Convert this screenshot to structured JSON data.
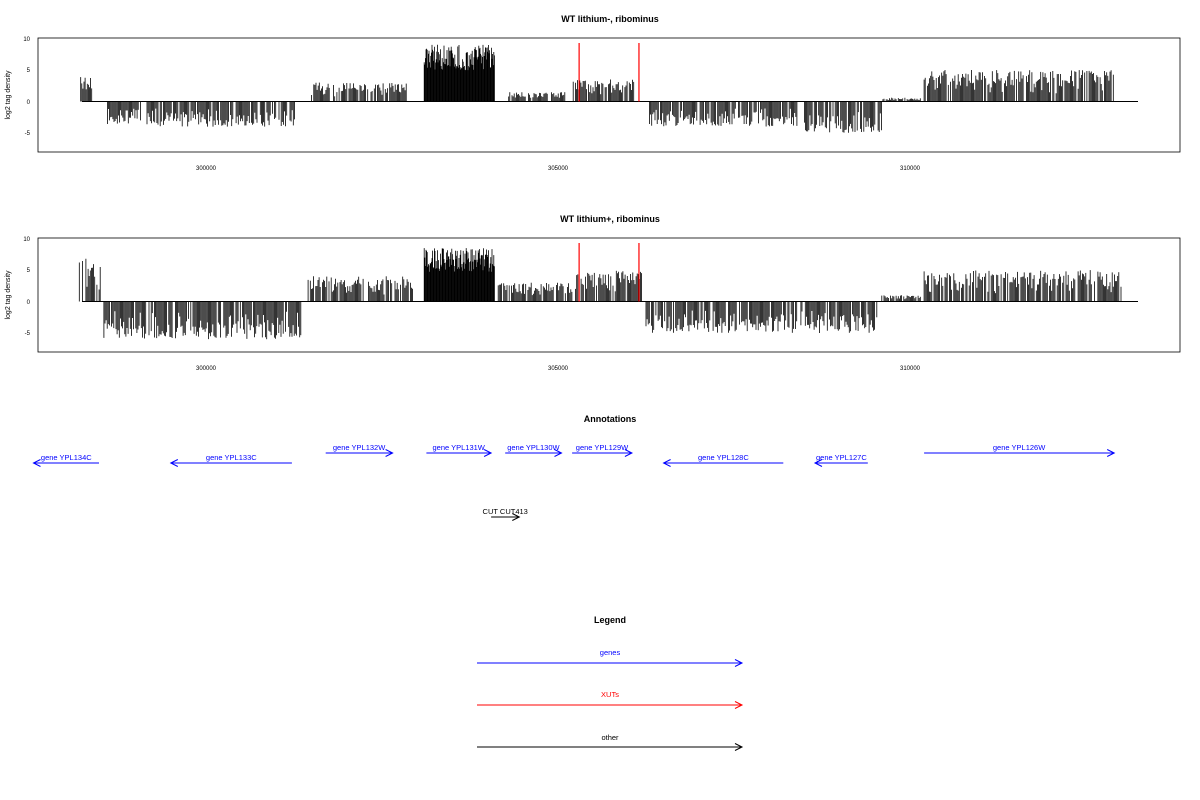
{
  "panels": [
    {
      "title": "WT lithium-, ribominus",
      "ylabel": "log2 tag density",
      "xticks": [
        "300000",
        "305000",
        "310000"
      ],
      "yticks": [
        "10",
        "5",
        "0",
        "-5"
      ]
    },
    {
      "title": "WT lithium+, ribominus",
      "ylabel": "log2 tag density",
      "xticks": [
        "300000",
        "305000",
        "310000"
      ],
      "yticks": [
        "10",
        "5",
        "0",
        "-5"
      ]
    }
  ],
  "annotations": {
    "title": "Annotations",
    "features": [
      {
        "label": "gene YPL134C",
        "start": 298480,
        "end": 297550,
        "category": "genes"
      },
      {
        "label": "gene YPL133C",
        "start": 301220,
        "end": 299500,
        "category": "genes"
      },
      {
        "label": "gene YPL132W",
        "start": 301700,
        "end": 302650,
        "category": "genes"
      },
      {
        "label": "gene YPL131W",
        "start": 303130,
        "end": 304050,
        "category": "genes"
      },
      {
        "label": "gene YPL130W",
        "start": 304250,
        "end": 305050,
        "category": "genes"
      },
      {
        "label": "gene YPL129W",
        "start": 305200,
        "end": 306050,
        "category": "genes"
      },
      {
        "label": "gene YPL128C",
        "start": 308200,
        "end": 306500,
        "category": "genes"
      },
      {
        "label": "gene YPL127C",
        "start": 309400,
        "end": 308650,
        "category": "genes"
      },
      {
        "label": "gene YPL126W",
        "start": 310200,
        "end": 312900,
        "category": "genes"
      },
      {
        "label": "CUT CUT413",
        "start": 304050,
        "end": 304450,
        "category": "other"
      }
    ]
  },
  "legend": {
    "title": "Legend",
    "items": [
      {
        "label": "genes",
        "color": "#0000ff"
      },
      {
        "label": "XUTs",
        "color": "#ff0000"
      },
      {
        "label": "other",
        "color": "#000000"
      }
    ]
  },
  "chart_data": [
    {
      "type": "bar",
      "title": "WT lithium-, ribominus",
      "xlabel": "",
      "ylabel": "log2 tag density",
      "xlim": [
        297300,
        313800
      ],
      "ylim": [
        -8,
        10
      ],
      "xticks": [
        300000,
        305000,
        310000
      ],
      "yticks": [
        10,
        5,
        0,
        -5
      ],
      "red_markers": [
        305300,
        306150
      ],
      "segments": [
        {
          "start": 298220,
          "end": 298380,
          "amp": 4
        },
        {
          "start": 298600,
          "end": 301260,
          "amp": -4
        },
        {
          "start": 301500,
          "end": 302850,
          "amp": 3
        },
        {
          "start": 303100,
          "end": 304100,
          "amp": 9
        },
        {
          "start": 304300,
          "end": 305100,
          "amp": 1.5
        },
        {
          "start": 305200,
          "end": 306100,
          "amp": 3.5
        },
        {
          "start": 306300,
          "end": 308400,
          "amp": -4
        },
        {
          "start": 308500,
          "end": 309600,
          "amp": -5
        },
        {
          "start": 309600,
          "end": 310150,
          "amp": 0.6
        },
        {
          "start": 310200,
          "end": 312900,
          "amp": 5
        }
      ]
    },
    {
      "type": "bar",
      "title": "WT lithium+, ribominus",
      "xlabel": "",
      "ylabel": "log2 tag density",
      "xlim": [
        297300,
        313800
      ],
      "ylim": [
        -8,
        10
      ],
      "xticks": [
        300000,
        305000,
        310000
      ],
      "yticks": [
        10,
        5,
        0,
        -5
      ],
      "red_markers": [
        305300,
        306150
      ],
      "segments": [
        {
          "start": 298200,
          "end": 298500,
          "amp": 7
        },
        {
          "start": 298550,
          "end": 301350,
          "amp": -6
        },
        {
          "start": 301450,
          "end": 302950,
          "amp": 4
        },
        {
          "start": 303100,
          "end": 304100,
          "amp": 8.5
        },
        {
          "start": 304150,
          "end": 305200,
          "amp": 3
        },
        {
          "start": 305250,
          "end": 306200,
          "amp": 5
        },
        {
          "start": 306250,
          "end": 308400,
          "amp": -5
        },
        {
          "start": 308450,
          "end": 309550,
          "amp": -5
        },
        {
          "start": 309600,
          "end": 310150,
          "amp": 1
        },
        {
          "start": 310200,
          "end": 313000,
          "amp": 5
        }
      ]
    }
  ]
}
